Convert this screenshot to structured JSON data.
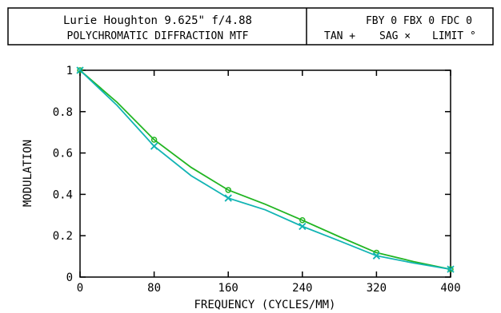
{
  "header": {
    "title_line1": "Lurie Houghton 9.625\" f/4.88",
    "title_line2": "POLYCHROMATIC DIFFRACTION MTF",
    "field_line1": "FBY 0 FBX 0 FDC 0",
    "legend_tan": "TAN +",
    "legend_sag": "SAG ×",
    "legend_limit": "LIMIT °"
  },
  "colors": {
    "tan": "#22b522",
    "sag": "#12b4b4",
    "axis": "#000000",
    "background": "#ffffff"
  },
  "chart_data": {
    "type": "line",
    "xlabel": "FREQUENCY (CYCLES/MM)",
    "ylabel": "MODULATION",
    "xlim": [
      0,
      400
    ],
    "ylim": [
      0,
      1
    ],
    "xticks": [
      0,
      80,
      160,
      240,
      320,
      400
    ],
    "yticks": [
      0,
      0.2,
      0.4,
      0.6,
      0.8,
      1
    ],
    "xtick_labels": [
      "0",
      "80",
      "160",
      "240",
      "320",
      "400"
    ],
    "ytick_labels": [
      "0",
      "0.2",
      "0.4",
      "0.6",
      "0.8",
      "1"
    ],
    "grid": false,
    "marker_x": [
      0,
      80,
      160,
      240,
      320,
      400
    ],
    "series": [
      {
        "name": "TAN",
        "marker": "circle",
        "color": "#22b522",
        "x": [
          0,
          40,
          80,
          120,
          160,
          200,
          240,
          280,
          320,
          360,
          400
        ],
        "y": [
          1.0,
          0.845,
          0.664,
          0.53,
          0.421,
          0.352,
          0.275,
          0.195,
          0.118,
          0.075,
          0.038
        ]
      },
      {
        "name": "SAG",
        "marker": "x",
        "color": "#12b4b4",
        "x": [
          0,
          40,
          80,
          120,
          160,
          200,
          240,
          280,
          320,
          360,
          400
        ],
        "y": [
          1.0,
          0.83,
          0.633,
          0.49,
          0.382,
          0.325,
          0.245,
          0.175,
          0.103,
          0.068,
          0.038
        ]
      }
    ]
  }
}
